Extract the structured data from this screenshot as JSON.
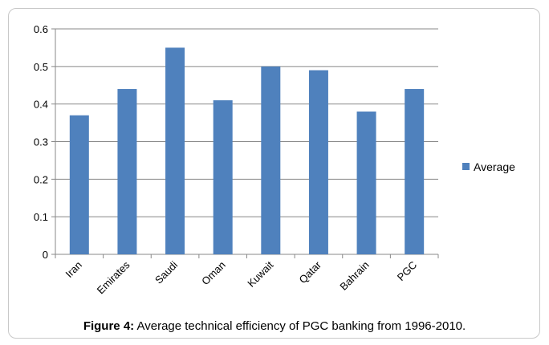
{
  "chart_data": {
    "type": "bar",
    "categories": [
      "Iran",
      "Emirates",
      "Saudi",
      "Oman",
      "Kuwait",
      "Qatar",
      "Bahrain",
      "PGC"
    ],
    "series": [
      {
        "name": "Average",
        "values": [
          0.37,
          0.44,
          0.55,
          0.41,
          0.5,
          0.49,
          0.38,
          0.44
        ]
      }
    ],
    "ylim": [
      0,
      0.6
    ],
    "yticks": [
      "0",
      "0.1",
      "0.2",
      "0.3",
      "0.4",
      "0.5",
      "0.6"
    ],
    "grid": true,
    "legend_position": "right",
    "bar_color": "#4f81bd"
  },
  "caption": {
    "label": "Figure 4:",
    "text": " Average technical efficiency of PGC banking from 1996-2010."
  }
}
